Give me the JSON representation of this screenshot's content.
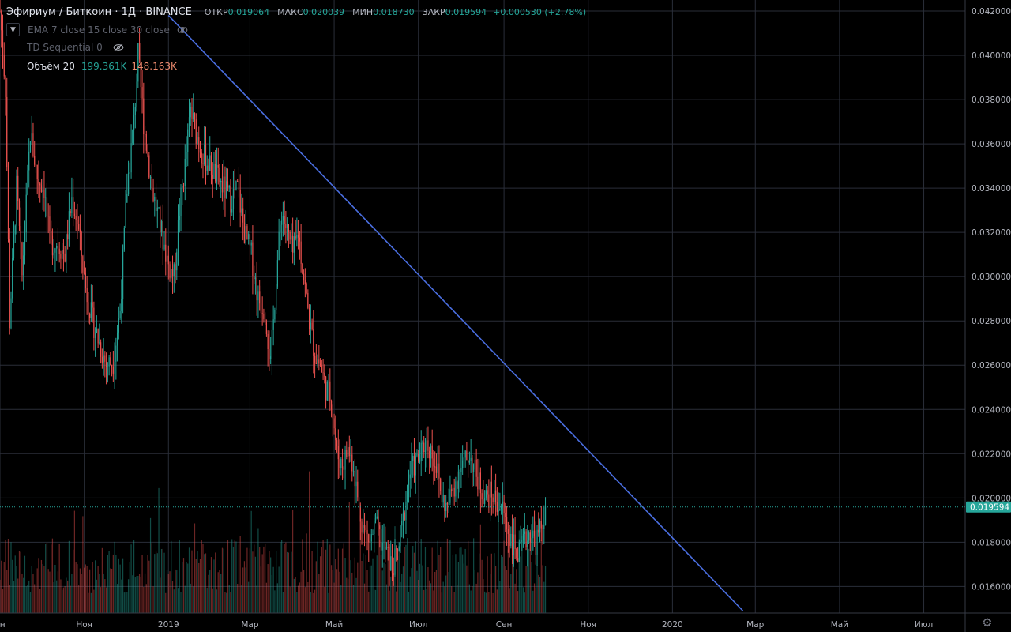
{
  "header": {
    "symbol": "Эфириум / Биткоин · 1Д · BINANCE",
    "open_label": "ОТКР",
    "open": "0.019064",
    "high_label": "МАКС",
    "high": "0.020039",
    "low_label": "МИН",
    "low": "0.018730",
    "close_label": "ЗАКР",
    "close": "0.019594",
    "change": "+0.000530 (+2.78%)"
  },
  "indicators": {
    "ema": "EMA 7 close 15 close 30 close",
    "td": "TD Sequential 0",
    "volume_label": "Объём 20",
    "volume_green": "199.361K",
    "volume_red": "148.163K"
  },
  "colors": {
    "up": "#26a69a",
    "down": "#ef5350",
    "trendline": "#4a6ee0",
    "grid": "#2a2e39",
    "background": "#000000",
    "price_tag": "#26a69a"
  },
  "icons": {
    "settings": "gear-icon",
    "hide": "eye-crossed-icon",
    "collapse": "chevron-down-icon"
  },
  "chart_data": {
    "type": "candlestick",
    "grid": true,
    "y_axis_position": "right",
    "ylim": [
      0.0148,
      0.0425
    ],
    "y_ticks": [
      "0.042000",
      "0.040000",
      "0.038000",
      "0.036000",
      "0.034000",
      "0.032000",
      "0.030000",
      "0.028000",
      "0.026000",
      "0.024000",
      "0.022000",
      "0.020000",
      "0.018000",
      "0.016000"
    ],
    "y_tick_values": [
      0.042,
      0.04,
      0.038,
      0.036,
      0.034,
      0.032,
      0.03,
      0.028,
      0.026,
      0.024,
      0.022,
      0.02,
      0.018,
      0.016
    ],
    "x_ticks": [
      "ен",
      "Ноя",
      "2019",
      "Мар",
      "Май",
      "Июл",
      "Сен",
      "Ноя",
      "2020",
      "Мар",
      "Май",
      "Июл"
    ],
    "x_tick_days": [
      -122,
      -61,
      0,
      59,
      120,
      181,
      243,
      304,
      365,
      425,
      486,
      547
    ],
    "x_range_days": [
      -122,
      577
    ],
    "last_price": "0.019594",
    "last_price_value": 0.019594,
    "price_path": [
      [
        -122,
        0.042
      ],
      [
        -118,
        0.0385
      ],
      [
        -115,
        0.028
      ],
      [
        -110,
        0.034
      ],
      [
        -106,
        0.03
      ],
      [
        -100,
        0.0365
      ],
      [
        -95,
        0.0345
      ],
      [
        -90,
        0.034
      ],
      [
        -86,
        0.0315
      ],
      [
        -80,
        0.0315
      ],
      [
        -75,
        0.031
      ],
      [
        -70,
        0.0335
      ],
      [
        -66,
        0.0325
      ],
      [
        -60,
        0.0295
      ],
      [
        -55,
        0.028
      ],
      [
        -50,
        0.027
      ],
      [
        -45,
        0.026
      ],
      [
        -40,
        0.0262
      ],
      [
        -35,
        0.0285
      ],
      [
        -30,
        0.034
      ],
      [
        -25,
        0.037
      ],
      [
        -22,
        0.04
      ],
      [
        -18,
        0.037
      ],
      [
        -12,
        0.034
      ],
      [
        -5,
        0.032
      ],
      [
        0,
        0.0305
      ],
      [
        4,
        0.03
      ],
      [
        8,
        0.033
      ],
      [
        12,
        0.035
      ],
      [
        16,
        0.0375
      ],
      [
        20,
        0.0365
      ],
      [
        25,
        0.0355
      ],
      [
        30,
        0.035
      ],
      [
        35,
        0.0345
      ],
      [
        40,
        0.034
      ],
      [
        45,
        0.0335
      ],
      [
        50,
        0.034
      ],
      [
        55,
        0.032
      ],
      [
        60,
        0.031
      ],
      [
        65,
        0.029
      ],
      [
        70,
        0.0285
      ],
      [
        74,
        0.026
      ],
      [
        78,
        0.03
      ],
      [
        82,
        0.033
      ],
      [
        86,
        0.032
      ],
      [
        90,
        0.031
      ],
      [
        94,
        0.032
      ],
      [
        98,
        0.03
      ],
      [
        102,
        0.028
      ],
      [
        106,
        0.0265
      ],
      [
        110,
        0.026
      ],
      [
        114,
        0.025
      ],
      [
        118,
        0.0245
      ],
      [
        122,
        0.022
      ],
      [
        126,
        0.0215
      ],
      [
        130,
        0.0222
      ],
      [
        134,
        0.0215
      ],
      [
        138,
        0.0195
      ],
      [
        142,
        0.0185
      ],
      [
        146,
        0.018
      ],
      [
        150,
        0.0188
      ],
      [
        154,
        0.018
      ],
      [
        158,
        0.0175
      ],
      [
        162,
        0.0168
      ],
      [
        166,
        0.0175
      ],
      [
        170,
        0.019
      ],
      [
        174,
        0.021
      ],
      [
        178,
        0.0215
      ],
      [
        182,
        0.0218
      ],
      [
        186,
        0.0225
      ],
      [
        190,
        0.0222
      ],
      [
        194,
        0.0215
      ],
      [
        198,
        0.02
      ],
      [
        202,
        0.0195
      ],
      [
        206,
        0.0205
      ],
      [
        210,
        0.021
      ],
      [
        214,
        0.0215
      ],
      [
        218,
        0.022
      ],
      [
        222,
        0.0212
      ],
      [
        226,
        0.0205
      ],
      [
        230,
        0.02
      ],
      [
        234,
        0.0202
      ],
      [
        238,
        0.0198
      ],
      [
        242,
        0.0195
      ],
      [
        246,
        0.0185
      ],
      [
        250,
        0.0178
      ],
      [
        254,
        0.0174
      ],
      [
        258,
        0.018
      ],
      [
        262,
        0.0185
      ],
      [
        266,
        0.018
      ],
      [
        270,
        0.0186
      ],
      [
        273,
        0.0196
      ]
    ],
    "trendline": {
      "start": [
        0,
        0.0418
      ],
      "end": [
        416,
        0.0149
      ]
    },
    "volume_ylim": [
      0,
      1
    ]
  }
}
